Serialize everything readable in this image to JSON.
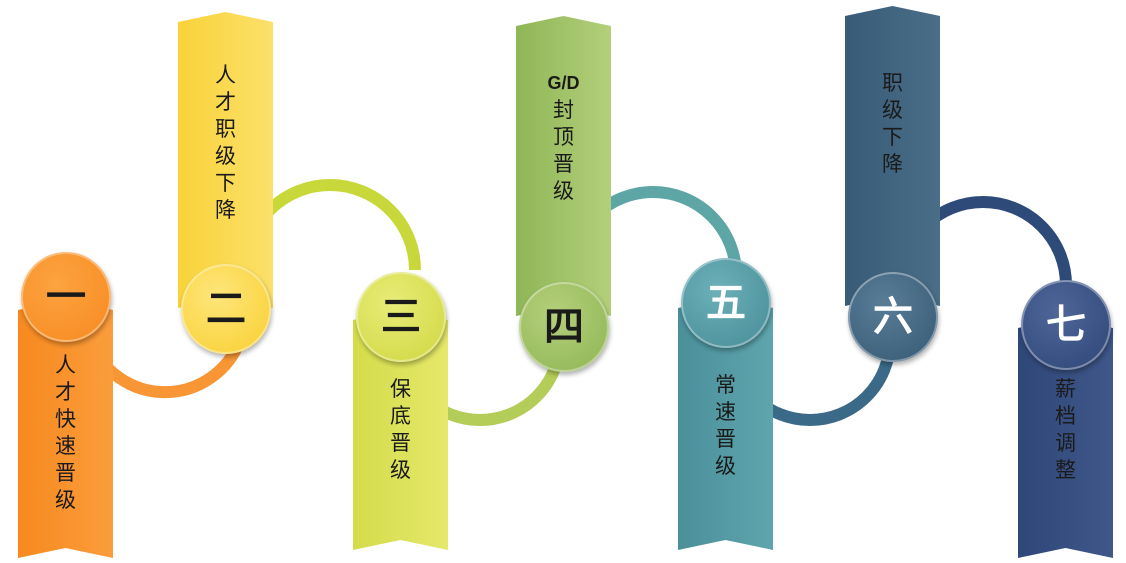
{
  "steps": [
    {
      "num": "一",
      "label": [
        "人",
        "才",
        "快",
        "速",
        "晋",
        "级"
      ],
      "color": "#f7891f",
      "num_color": "#1a1a1a"
    },
    {
      "num": "二",
      "label": [
        "人",
        "才",
        "职",
        "级",
        "下",
        "降"
      ],
      "color": "#fad33a",
      "num_color": "#1a1a1a"
    },
    {
      "num": "三",
      "label": [
        "保",
        "底",
        "晋",
        "级"
      ],
      "color": "#d4dc4a",
      "num_color": "#1a1a1a"
    },
    {
      "num": "四",
      "prefix": "G/D",
      "label": [
        "封",
        "顶",
        "晋",
        "级"
      ],
      "color": "#98bc5e",
      "num_color": "#1a1a1a"
    },
    {
      "num": "五",
      "label": [
        "常",
        "速",
        "晋",
        "级"
      ],
      "color": "#4f97a1",
      "num_color": "#ffffff"
    },
    {
      "num": "六",
      "label": [
        "职",
        "级",
        "下",
        "降"
      ],
      "color": "#3b5f7b",
      "num_color": "#ffffff"
    },
    {
      "num": "七",
      "label": [
        "薪",
        "档",
        "调",
        "整"
      ],
      "color": "#324b7e",
      "num_color": "#ffffff"
    }
  ]
}
